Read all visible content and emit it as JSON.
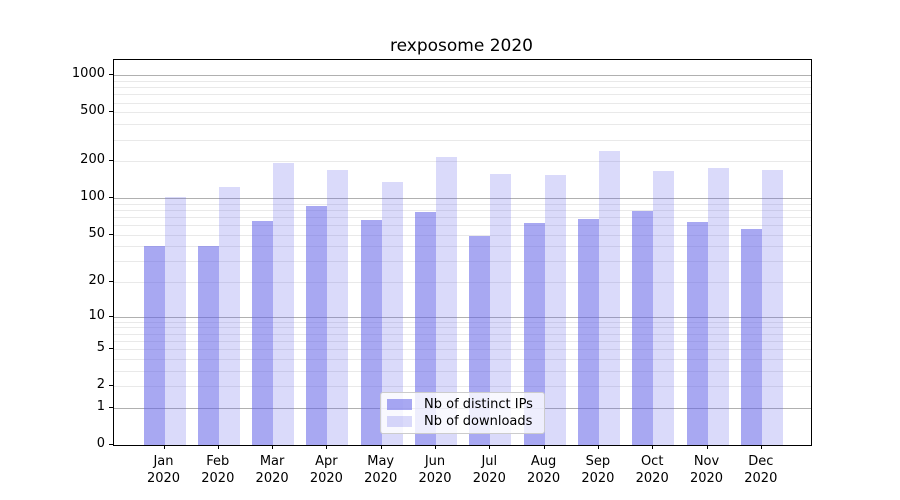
{
  "title": "rexposome 2020",
  "chart_data": {
    "type": "bar",
    "title": "rexposome 2020",
    "categories": [
      "Jan",
      "Feb",
      "Mar",
      "Apr",
      "May",
      "Jun",
      "Jul",
      "Aug",
      "Sep",
      "Oct",
      "Nov",
      "Dec"
    ],
    "year": "2020",
    "series": [
      {
        "name": "Nb of distinct IPs",
        "color": "rgba(96,96,232,0.55)",
        "values": [
          40,
          40,
          65,
          86,
          66,
          77,
          49,
          63,
          68,
          78,
          64,
          56
        ]
      },
      {
        "name": "Nb of downloads",
        "color": "rgba(96,96,232,0.23)",
        "values": [
          102,
          123,
          193,
          169,
          136,
          218,
          157,
          154,
          243,
          167,
          176,
          169
        ]
      }
    ],
    "xlabel": "",
    "ylabel": "",
    "y_ticks": [
      0,
      1,
      2,
      5,
      10,
      20,
      50,
      100,
      200,
      500,
      1000
    ],
    "y_scale": "log10(1+value)",
    "ylim": [
      0,
      1320
    ],
    "grid": "horizontal, major at powers of 10, log-spaced minors",
    "legend_position": "lower center"
  },
  "colors": {
    "grid_major": "#b0b0b0",
    "grid_minor": "#e9e9e9",
    "axis": "#000000",
    "background": "#ffffff"
  }
}
